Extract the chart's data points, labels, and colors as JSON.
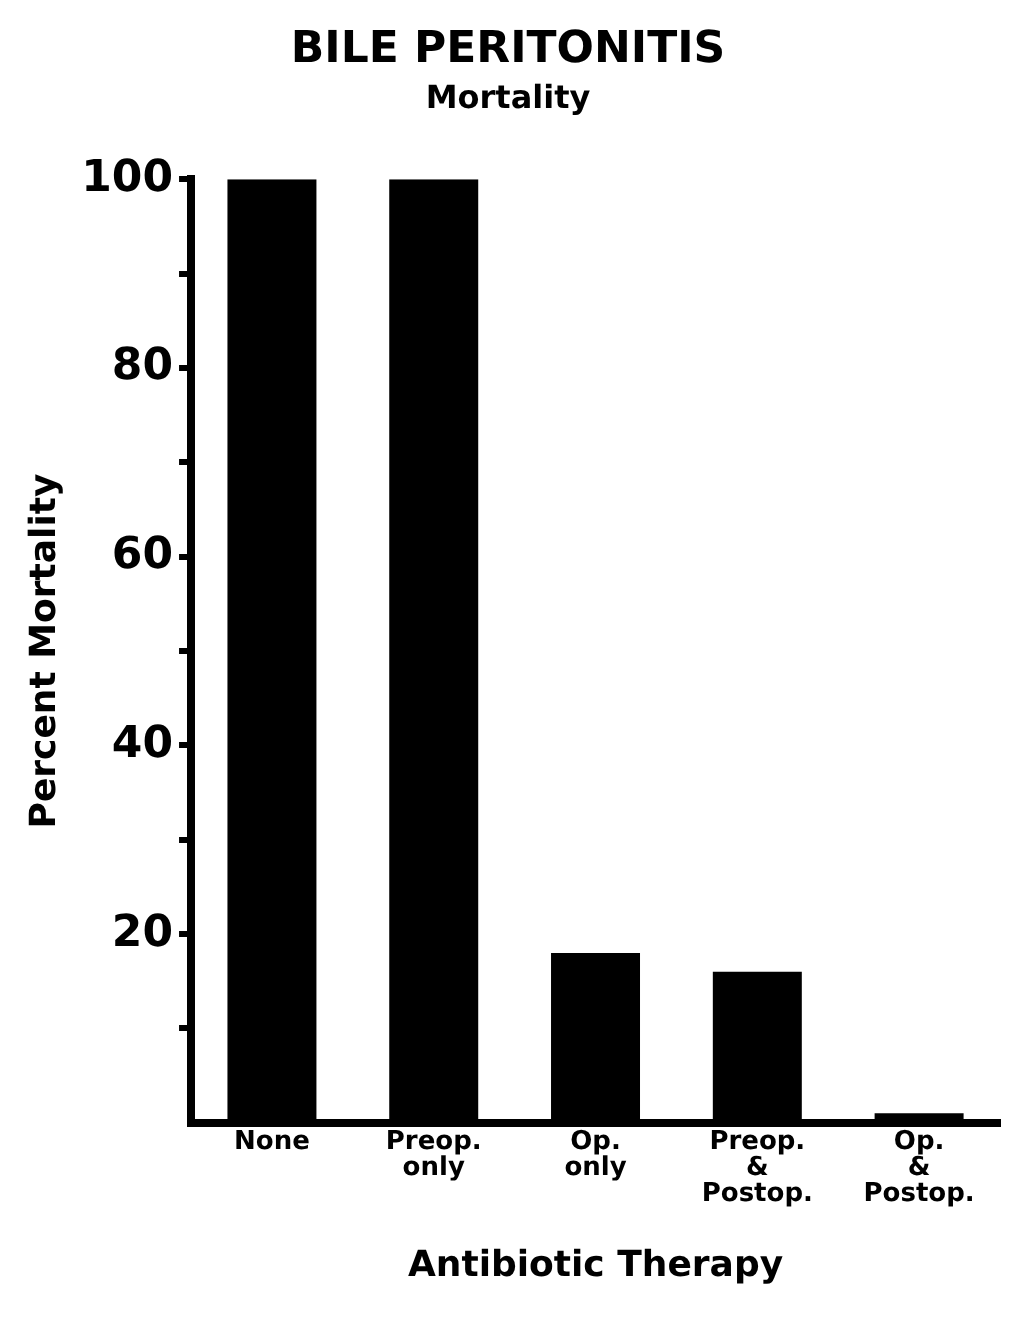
{
  "chart_data": {
    "type": "bar",
    "title": "BILE PERITONITIS",
    "subtitle": "Mortality",
    "xlabel": "Antibiotic Therapy",
    "ylabel": "Percent Mortality",
    "categories": [
      "None",
      "Preop.\nonly",
      "Op.\nonly",
      "Preop.\n&\nPostop.",
      "Op.\n&\nPostop."
    ],
    "values": [
      100,
      100,
      18,
      16,
      1
    ],
    "color": "#000000",
    "ylim": [
      0,
      100
    ],
    "yticks": [
      {
        "value": 10,
        "label": null
      },
      20,
      {
        "value": 30,
        "label": null
      },
      40,
      {
        "value": 50,
        "label": null
      },
      60,
      {
        "value": 70,
        "label": null
      },
      80,
      {
        "value": 90,
        "label": null
      },
      100
    ],
    "grid": false,
    "legend": false
  }
}
